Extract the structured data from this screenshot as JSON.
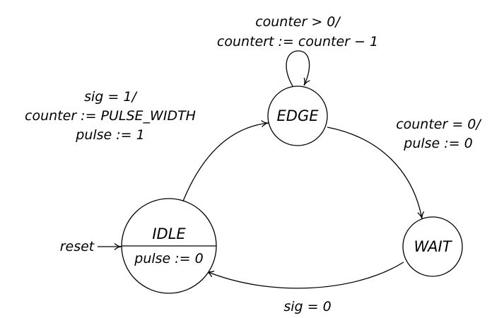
{
  "states": {
    "idle": {
      "name": "IDLE",
      "action": "pulse := 0"
    },
    "edge": {
      "name": "EDGE"
    },
    "wait": {
      "name": "WAIT"
    }
  },
  "transitions": {
    "self_loop": {
      "line1": "counter > 0/",
      "line2": "countert := counter − 1"
    },
    "idle_to_edge": {
      "line1": "sig = 1/",
      "line2": "counter := PULSE_WIDTH",
      "line3": "pulse := 1"
    },
    "edge_to_wait": {
      "line1": "counter = 0/",
      "line2": "pulse := 0"
    },
    "wait_to_idle": {
      "line1": "sig = 0"
    }
  },
  "reset_label": "reset"
}
